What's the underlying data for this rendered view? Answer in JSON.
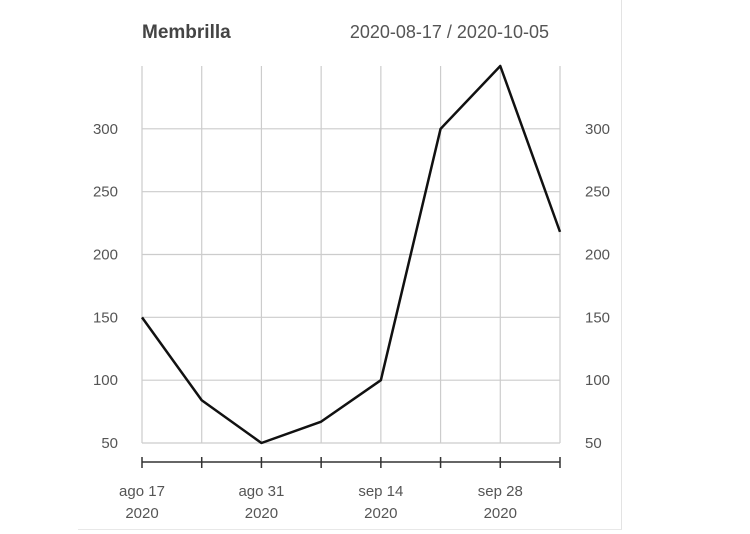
{
  "chart_data": {
    "type": "line",
    "title": "Membrilla",
    "subtitle": "2020-08-17 / 2020-10-05",
    "x": [
      "2020-08-17",
      "2020-08-24",
      "2020-08-31",
      "2020-09-07",
      "2020-09-14",
      "2020-09-21",
      "2020-09-28",
      "2020-10-05"
    ],
    "series": [
      {
        "values": [
          150,
          84,
          50,
          67,
          100,
          300,
          350,
          218
        ]
      }
    ],
    "xticks": [
      {
        "date": "2020-08-17",
        "line1": "ago 17",
        "line2": "2020"
      },
      {
        "date": "2020-08-31",
        "line1": "ago 31",
        "line2": "2020"
      },
      {
        "date": "2020-09-14",
        "line1": "sep 14",
        "line2": "2020"
      },
      {
        "date": "2020-09-28",
        "line1": "sep 28",
        "line2": "2020"
      }
    ],
    "yticks": [
      "50",
      "100",
      "150",
      "200",
      "250",
      "300"
    ],
    "ytick_values": [
      50,
      100,
      150,
      200,
      250,
      300
    ],
    "ylim": [
      50,
      350
    ],
    "xlim": [
      "2020-08-17",
      "2020-10-05"
    ],
    "grid": true,
    "line_color": "#111111",
    "grid_color": "#cccccc"
  }
}
